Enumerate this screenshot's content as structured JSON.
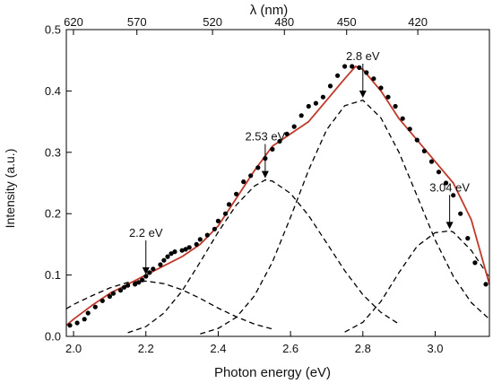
{
  "chart_data": {
    "type": "scatter",
    "xlabel": "Photon energy (eV)",
    "ylabel": "Intensity (a.u.)",
    "top_xlabel": "λ (nm)",
    "xlim": [
      1.98,
      3.15
    ],
    "ylim": [
      0.0,
      0.5
    ],
    "x_ticks": [
      2.0,
      2.2,
      2.4,
      2.6,
      2.8,
      3.0
    ],
    "x_tick_labels": [
      "2.0",
      "2.2",
      "2.4",
      "2.6",
      "2.8",
      "3.0"
    ],
    "y_ticks": [
      0.0,
      0.1,
      0.2,
      0.3,
      0.4,
      0.5
    ],
    "y_tick_labels": [
      "0.0",
      "0.1",
      "0.2",
      "0.3",
      "0.4",
      "0.5"
    ],
    "top_ticks_nm": [
      620,
      570,
      520,
      480,
      450,
      420
    ],
    "top_tick_labels": [
      "620",
      "570",
      "520",
      "480",
      "450",
      "420"
    ],
    "grid": false,
    "colors": {
      "data_points": "#000000",
      "fit_line": "#c0392b",
      "components": "#000000"
    },
    "series": [
      {
        "kind": "data_points",
        "x": [
          1.99,
          2.01,
          2.03,
          2.04,
          2.06,
          2.08,
          2.1,
          2.11,
          2.13,
          2.14,
          2.15,
          2.17,
          2.18,
          2.19,
          2.2,
          2.21,
          2.22,
          2.24,
          2.25,
          2.26,
          2.27,
          2.28,
          2.3,
          2.31,
          2.32,
          2.34,
          2.35,
          2.37,
          2.39,
          2.4,
          2.42,
          2.43,
          2.45,
          2.47,
          2.49,
          2.51,
          2.53,
          2.55,
          2.57,
          2.59,
          2.61,
          2.63,
          2.65,
          2.67,
          2.69,
          2.71,
          2.73,
          2.75,
          2.77,
          2.79,
          2.81,
          2.83,
          2.85,
          2.87,
          2.89,
          2.91,
          2.93,
          2.95,
          2.97,
          2.99,
          3.01,
          3.03,
          3.05,
          3.07,
          3.09,
          3.11,
          3.14
        ],
        "y": [
          0.018,
          0.022,
          0.028,
          0.038,
          0.048,
          0.058,
          0.065,
          0.07,
          0.075,
          0.08,
          0.083,
          0.085,
          0.088,
          0.092,
          0.098,
          0.104,
          0.11,
          0.117,
          0.124,
          0.13,
          0.135,
          0.138,
          0.14,
          0.142,
          0.145,
          0.15,
          0.158,
          0.165,
          0.175,
          0.188,
          0.2,
          0.215,
          0.232,
          0.252,
          0.262,
          0.275,
          0.29,
          0.305,
          0.318,
          0.33,
          0.342,
          0.36,
          0.375,
          0.38,
          0.39,
          0.408,
          0.425,
          0.44,
          0.44,
          0.438,
          0.43,
          0.42,
          0.405,
          0.39,
          0.375,
          0.355,
          0.338,
          0.32,
          0.302,
          0.285,
          0.268,
          0.25,
          0.23,
          0.2,
          0.16,
          0.12,
          0.085
        ]
      },
      {
        "kind": "fit_line",
        "x": [
          1.98,
          2.0,
          2.05,
          2.1,
          2.15,
          2.2,
          2.25,
          2.3,
          2.35,
          2.4,
          2.45,
          2.5,
          2.55,
          2.6,
          2.65,
          2.7,
          2.75,
          2.78,
          2.8,
          2.85,
          2.9,
          2.95,
          3.0,
          3.05,
          3.1,
          3.15
        ],
        "y": [
          0.018,
          0.028,
          0.05,
          0.07,
          0.085,
          0.1,
          0.115,
          0.13,
          0.15,
          0.18,
          0.225,
          0.27,
          0.31,
          0.33,
          0.35,
          0.385,
          0.42,
          0.44,
          0.435,
          0.4,
          0.355,
          0.32,
          0.285,
          0.25,
          0.19,
          0.085
        ]
      },
      {
        "kind": "component_curve",
        "type": "gaussian",
        "x": [
          1.98,
          2.0,
          2.05,
          2.1,
          2.15,
          2.2,
          2.25,
          2.3,
          2.35,
          2.4,
          2.45,
          2.5,
          2.55
        ],
        "y": [
          0.045,
          0.052,
          0.066,
          0.079,
          0.088,
          0.09,
          0.086,
          0.076,
          0.062,
          0.046,
          0.032,
          0.02,
          0.012
        ]
      },
      {
        "kind": "component_curve",
        "type": "gaussian",
        "x": [
          2.15,
          2.2,
          2.25,
          2.3,
          2.35,
          2.4,
          2.45,
          2.5,
          2.53,
          2.55,
          2.6,
          2.65,
          2.7,
          2.75,
          2.8,
          2.85,
          2.9
        ],
        "y": [
          0.006,
          0.016,
          0.038,
          0.074,
          0.121,
          0.17,
          0.214,
          0.245,
          0.255,
          0.253,
          0.233,
          0.197,
          0.152,
          0.107,
          0.068,
          0.039,
          0.02
        ]
      },
      {
        "kind": "component_curve",
        "type": "gaussian",
        "x": [
          2.35,
          2.4,
          2.45,
          2.5,
          2.55,
          2.6,
          2.65,
          2.7,
          2.75,
          2.8,
          2.85,
          2.9,
          2.95,
          3.0,
          3.05,
          3.1,
          3.15
        ],
        "y": [
          0.004,
          0.013,
          0.031,
          0.066,
          0.121,
          0.194,
          0.271,
          0.337,
          0.376,
          0.385,
          0.356,
          0.3,
          0.229,
          0.157,
          0.098,
          0.055,
          0.028
        ]
      },
      {
        "kind": "component_curve",
        "type": "gaussian",
        "x": [
          2.75,
          2.8,
          2.85,
          2.9,
          2.95,
          3.0,
          3.04,
          3.05,
          3.1,
          3.15
        ],
        "y": [
          0.007,
          0.023,
          0.057,
          0.104,
          0.147,
          0.169,
          0.172,
          0.17,
          0.14,
          0.096
        ]
      }
    ],
    "annotations": [
      {
        "text": "2.2 eV",
        "x": 2.2,
        "y": 0.098
      },
      {
        "text": "2.53 eV",
        "x": 2.53,
        "y": 0.255
      },
      {
        "text": "2.8 eV",
        "x": 2.8,
        "y": 0.386
      },
      {
        "text": "3.04 eV",
        "x": 3.04,
        "y": 0.172
      }
    ]
  }
}
